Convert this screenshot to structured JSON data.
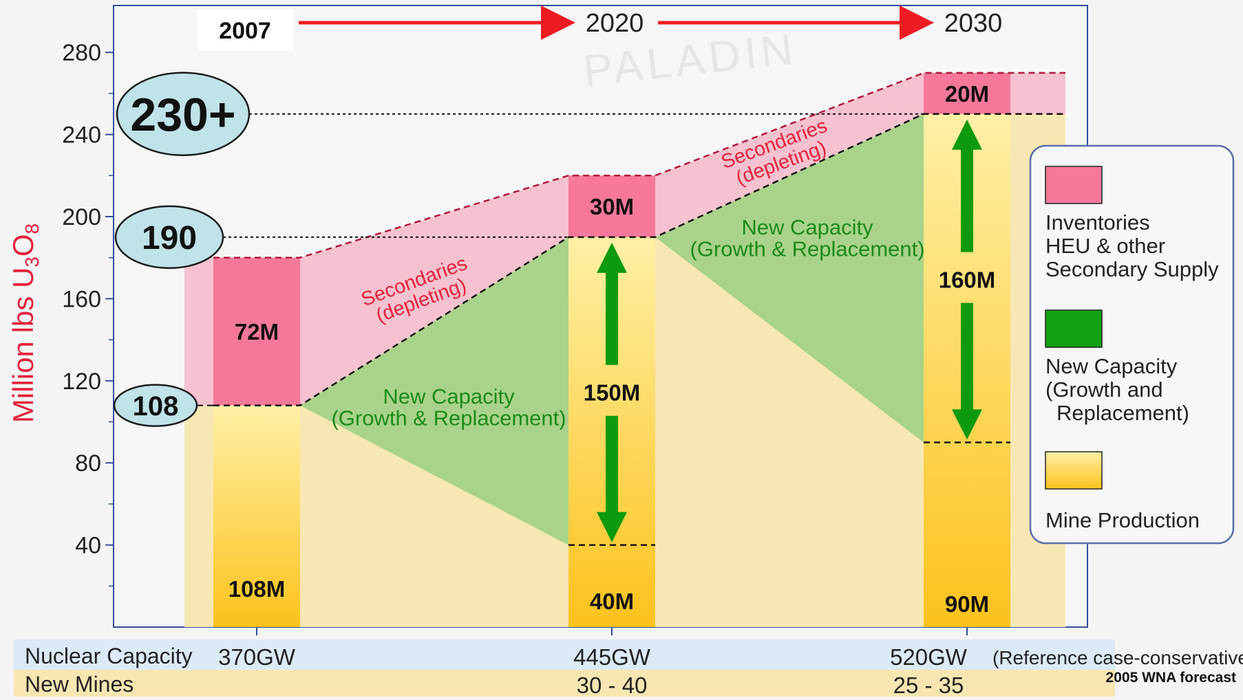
{
  "chart_data": {
    "type": "bar",
    "title": "",
    "ylabel": "Million lbs U3O8",
    "ylim": [
      0,
      290
    ],
    "yticks": [
      40,
      80,
      120,
      160,
      200,
      240,
      280
    ],
    "categories": [
      "370GW",
      "445GW",
      "520GW"
    ],
    "periods": [
      "2007",
      "2020",
      "2030"
    ],
    "series": [
      {
        "name": "Mine Production",
        "values": [
          108,
          40,
          90
        ]
      },
      {
        "name": "New Capacity (Growth and Replacement)",
        "values": [
          0,
          150,
          160
        ]
      },
      {
        "name": "Inventories HEU & other Secondary Supply",
        "values": [
          72,
          30,
          20
        ]
      }
    ],
    "segment_labels": {
      "mine": [
        "108M",
        "40M",
        "90M"
      ],
      "new_capacity": [
        "",
        "150M",
        "160M"
      ],
      "secondary": [
        "72M",
        "30M",
        "20M"
      ]
    },
    "reference_levels": [
      {
        "value": 108,
        "label": "108"
      },
      {
        "value": 190,
        "label": "190"
      },
      {
        "value": 250,
        "label": "230+"
      }
    ],
    "annotations": {
      "secondaries": "Secondaries",
      "depleting": "(depleting)",
      "new_capacity": "New Capacity",
      "growth_replacement": "(Growth & Replacement)",
      "watermark": "PALADIN",
      "source": "2005 WNA forecast"
    },
    "legend": {
      "placement": "right",
      "items": [
        {
          "lines": [
            "Inventories",
            "HEU & other",
            "Secondary Supply"
          ],
          "color": "#f7789a"
        },
        {
          "lines": [
            "New Capacity",
            "(Growth and",
            "Replacement)"
          ],
          "color": "#12a012"
        },
        {
          "lines": [
            "Mine Production"
          ],
          "color": "#fcd24a"
        }
      ]
    },
    "table": {
      "rows": [
        {
          "label": "Nuclear Capacity",
          "values": [
            "370GW",
            "445GW",
            "520GW"
          ],
          "note": "(Reference case-conservative)"
        },
        {
          "label": "New Mines",
          "values": [
            "",
            "30 - 40",
            "25 - 35"
          ]
        }
      ]
    },
    "grid": false
  },
  "colors": {
    "mine_fill": "#fcd24a",
    "mine_band": "#f7e7b4",
    "green_band": "#a9d38a",
    "pink_bar": "#f7789a",
    "pink_band": "#f6c2cf",
    "axis": "#2f4f9b",
    "arrow_red": "#ee1b22",
    "arrow_green": "#0e9a0e",
    "label_red": "#e3213b",
    "legend_border": "#5a6fa6",
    "table_row1": "#dceaf7",
    "table_row2": "#f8e6b2",
    "oval_fill": "#bfe3e8"
  }
}
